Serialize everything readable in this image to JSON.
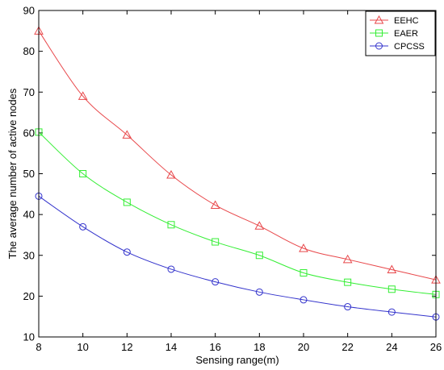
{
  "chart_data": {
    "type": "line",
    "xlabel": "Sensing range(m)",
    "ylabel": "The average number of active nodes",
    "xlim": [
      8,
      26
    ],
    "ylim": [
      10,
      90
    ],
    "xticks": [
      8,
      10,
      12,
      14,
      16,
      18,
      20,
      22,
      24,
      26
    ],
    "yticks": [
      10,
      20,
      30,
      40,
      50,
      60,
      70,
      80,
      90
    ],
    "grid": false,
    "legend_position": "top-right",
    "x": [
      8,
      10,
      12,
      14,
      16,
      18,
      20,
      22,
      24,
      26
    ],
    "series": [
      {
        "name": "EEHC",
        "color": "#e8474a",
        "marker": "triangle",
        "values": [
          85,
          69,
          59.5,
          49.7,
          42.3,
          37.2,
          31.7,
          29,
          26.5,
          24
        ]
      },
      {
        "name": "EAER",
        "color": "#33ee33",
        "marker": "square",
        "values": [
          60.2,
          50,
          43,
          37.5,
          33.3,
          30,
          25.7,
          23.4,
          21.7,
          20.4
        ]
      },
      {
        "name": "CPCSS",
        "color": "#3333cc",
        "marker": "circle",
        "values": [
          44.5,
          37,
          30.8,
          26.6,
          23.5,
          21,
          19.1,
          17.4,
          16.1,
          14.9
        ]
      }
    ]
  }
}
